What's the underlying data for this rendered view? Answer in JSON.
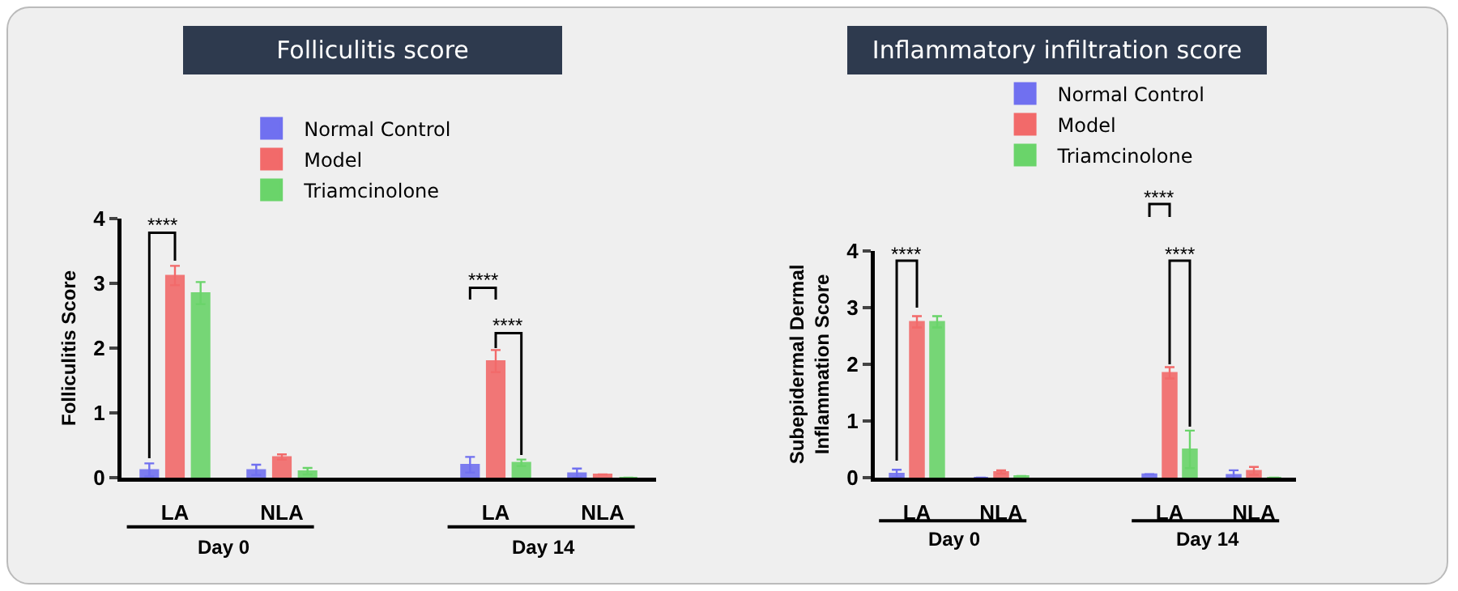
{
  "chart_data": [
    {
      "type": "bar",
      "title": "Folliculitis score",
      "ylabel": "Folliculitis Score",
      "categories": [
        "LA",
        "NLA",
        null,
        "LA",
        "NLA"
      ],
      "ylim": [
        0,
        4
      ],
      "yticks": [
        0,
        1,
        2,
        3,
        4
      ],
      "legend": "top",
      "series": [
        {
          "name": "Normal Control",
          "color": "#7070f0",
          "values": [
            0.12,
            0.12,
            null,
            0.2,
            0.07
          ],
          "errors": [
            0.1,
            0.08,
            null,
            0.12,
            0.07
          ]
        },
        {
          "name": "Model",
          "color": "#f26a6a",
          "values": [
            3.12,
            0.32,
            null,
            1.8,
            0.05
          ],
          "errors": [
            0.15,
            0.04,
            null,
            0.17,
            null
          ]
        },
        {
          "name": "Triamcinolone",
          "color": "#6ad46a",
          "values": [
            2.85,
            0.1,
            null,
            0.23,
            0
          ],
          "errors": [
            0.17,
            0.05,
            null,
            0.05,
            null
          ]
        }
      ],
      "annotations": [
        "Day 0",
        "Day 14",
        "****",
        "****",
        "****"
      ]
    },
    {
      "type": "bar",
      "title": "Inflammatory infiltration score",
      "ylabel": "Subepidermal Dermal\nInflammation Score",
      "categories": [
        "LA",
        "NLA",
        null,
        "LA",
        "NLA"
      ],
      "ylim": [
        0,
        4
      ],
      "yticks": [
        0,
        1,
        2,
        3,
        4
      ],
      "legend": "top",
      "series": [
        {
          "name": "Normal Control",
          "color": "#7070f0",
          "values": [
            0.07,
            0,
            null,
            0.06,
            0.05
          ],
          "errors": [
            0.07,
            null,
            null,
            null,
            0.08
          ]
        },
        {
          "name": "Model",
          "color": "#f26a6a",
          "values": [
            2.75,
            0.1,
            null,
            1.85,
            0.12
          ],
          "errors": [
            0.1,
            0.03,
            null,
            0.1,
            0.07
          ]
        },
        {
          "name": "Triamcinolone",
          "color": "#6ad46a",
          "values": [
            2.75,
            0.03,
            null,
            0.5,
            0
          ],
          "errors": [
            0.1,
            null,
            null,
            0.33,
            null
          ]
        }
      ],
      "annotations": [
        "Day 0",
        "Day 14",
        "****",
        "****",
        "****"
      ]
    }
  ]
}
